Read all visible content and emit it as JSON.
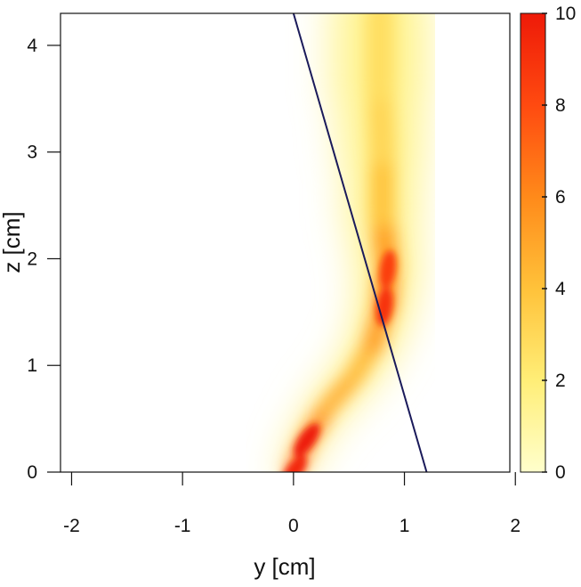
{
  "chart_data": {
    "type": "heatmap",
    "title": "",
    "xlabel": "y  [cm]",
    "ylabel": "z  [cm]",
    "xlim": [
      -2.1,
      1.95
    ],
    "ylim": [
      0,
      4.3
    ],
    "x_ticks": [
      "-2",
      "-1",
      "0",
      "1",
      "2"
    ],
    "y_ticks": [
      "0",
      "1",
      "2",
      "3",
      "4"
    ],
    "colorbar": {
      "range": [
        0,
        10
      ],
      "ticks": [
        "0",
        "2",
        "4",
        "6",
        "8",
        "10"
      ],
      "colormap": [
        "#ffffcc",
        "#ffee77",
        "#ffc23a",
        "#ff8a1a",
        "#ff4a10",
        "#ee1a08"
      ]
    },
    "density_path": [
      {
        "y": 0.0,
        "z": 0.0,
        "intensity": 9.5
      },
      {
        "y": 0.12,
        "z": 0.3,
        "intensity": 10
      },
      {
        "y": 0.3,
        "z": 0.6,
        "intensity": 7
      },
      {
        "y": 0.55,
        "z": 0.9,
        "intensity": 5
      },
      {
        "y": 0.72,
        "z": 1.2,
        "intensity": 5.5
      },
      {
        "y": 0.82,
        "z": 1.55,
        "intensity": 9
      },
      {
        "y": 0.85,
        "z": 1.9,
        "intensity": 8.5
      },
      {
        "y": 0.8,
        "z": 2.4,
        "intensity": 5.5
      },
      {
        "y": 0.8,
        "z": 3.0,
        "intensity": 3.5
      },
      {
        "y": 0.78,
        "z": 3.6,
        "intensity": 2.5
      },
      {
        "y": 0.78,
        "z": 4.3,
        "intensity": 2
      }
    ],
    "line": {
      "color": "#1a1a5a",
      "points": [
        {
          "y": 0.0,
          "z": 4.3
        },
        {
          "y": 1.2,
          "z": 0.0
        }
      ]
    }
  }
}
